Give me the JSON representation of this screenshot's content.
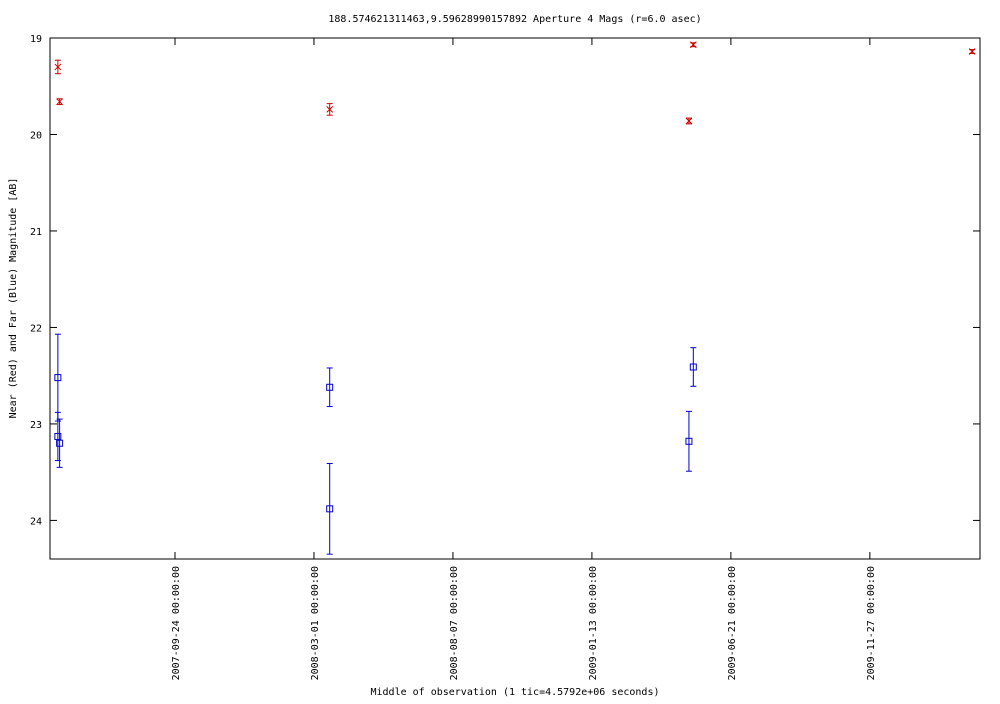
{
  "chart_data": {
    "type": "errorbar",
    "title": "188.574621311463,9.59628990157892   Aperture 4 Mags (r=6.0 asec)",
    "x_label": "Middle of observation (1 tic=4.5792e+06 seconds)",
    "y_label": "Near (Red) and Far (Blue) Magnitude [AB]",
    "xlim": [
      "2007-05-04",
      "2010-04-02"
    ],
    "xticks": [
      {
        "value": "2007-09-24",
        "label": "2007-09-24 00:00:00"
      },
      {
        "value": "2008-03-01",
        "label": "2008-03-01 00:00:00"
      },
      {
        "value": "2008-08-07",
        "label": "2008-08-07 00:00:00"
      },
      {
        "value": "2009-01-13",
        "label": "2009-01-13 00:00:00"
      },
      {
        "value": "2009-06-21",
        "label": "2009-06-21 00:00:00"
      },
      {
        "value": "2009-11-27",
        "label": "2009-11-27 00:00:00"
      }
    ],
    "ylim": [
      19,
      24.4
    ],
    "y_reversed": true,
    "yticks": [
      19,
      20,
      21,
      22,
      23,
      24
    ],
    "series": [
      {
        "name": "Near",
        "color": "#cc0000",
        "marker": "x",
        "x": [
          "2007-05-13",
          "2007-05-15",
          "2008-03-19",
          "2009-05-09",
          "2009-05-04",
          "2010-03-24"
        ],
        "values": [
          19.3,
          19.66,
          19.74,
          19.07,
          19.86,
          19.14
        ],
        "errors": [
          0.07,
          0.03,
          0.06,
          0.02,
          0.03,
          0.02
        ]
      },
      {
        "name": "Far",
        "color": "#0000cc",
        "marker": "square",
        "x": [
          "2007-05-13",
          "2007-05-13",
          "2007-05-15",
          "2008-03-19",
          "2008-03-19",
          "2009-05-09",
          "2009-05-04"
        ],
        "values": [
          22.52,
          23.13,
          23.2,
          22.62,
          23.88,
          22.41,
          23.18
        ],
        "errors": [
          0.45,
          0.25,
          0.25,
          0.2,
          0.47,
          0.2,
          0.31
        ]
      }
    ]
  }
}
